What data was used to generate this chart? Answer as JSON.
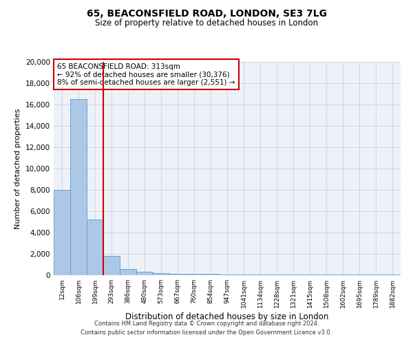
{
  "title1": "65, BEACONSFIELD ROAD, LONDON, SE3 7LG",
  "title2": "Size of property relative to detached houses in London",
  "xlabel": "Distribution of detached houses by size in London",
  "ylabel": "Number of detached properties",
  "categories": [
    "12sqm",
    "106sqm",
    "199sqm",
    "293sqm",
    "386sqm",
    "480sqm",
    "573sqm",
    "667sqm",
    "760sqm",
    "854sqm",
    "947sqm",
    "1041sqm",
    "1134sqm",
    "1228sqm",
    "1321sqm",
    "1415sqm",
    "1508sqm",
    "1602sqm",
    "1695sqm",
    "1789sqm",
    "1882sqm"
  ],
  "values": [
    8000,
    16500,
    5200,
    1800,
    600,
    350,
    200,
    150,
    100,
    100,
    75,
    75,
    50,
    50,
    50,
    50,
    50,
    50,
    50,
    50,
    50
  ],
  "bar_color": "#adc8e6",
  "bar_edge_color": "#5a9bc7",
  "vline_color": "#cc0000",
  "annotation_text": "65 BEACONSFIELD ROAD: 313sqm\n← 92% of detached houses are smaller (30,376)\n8% of semi-detached houses are larger (2,551) →",
  "annotation_box_color": "#cc0000",
  "ylim": [
    0,
    20000
  ],
  "yticks": [
    0,
    2000,
    4000,
    6000,
    8000,
    10000,
    12000,
    14000,
    16000,
    18000,
    20000
  ],
  "grid_color": "#d0d8e8",
  "background_color": "#eef2f8",
  "footer1": "Contains HM Land Registry data © Crown copyright and database right 2024.",
  "footer2": "Contains public sector information licensed under the Open Government Licence v3.0."
}
